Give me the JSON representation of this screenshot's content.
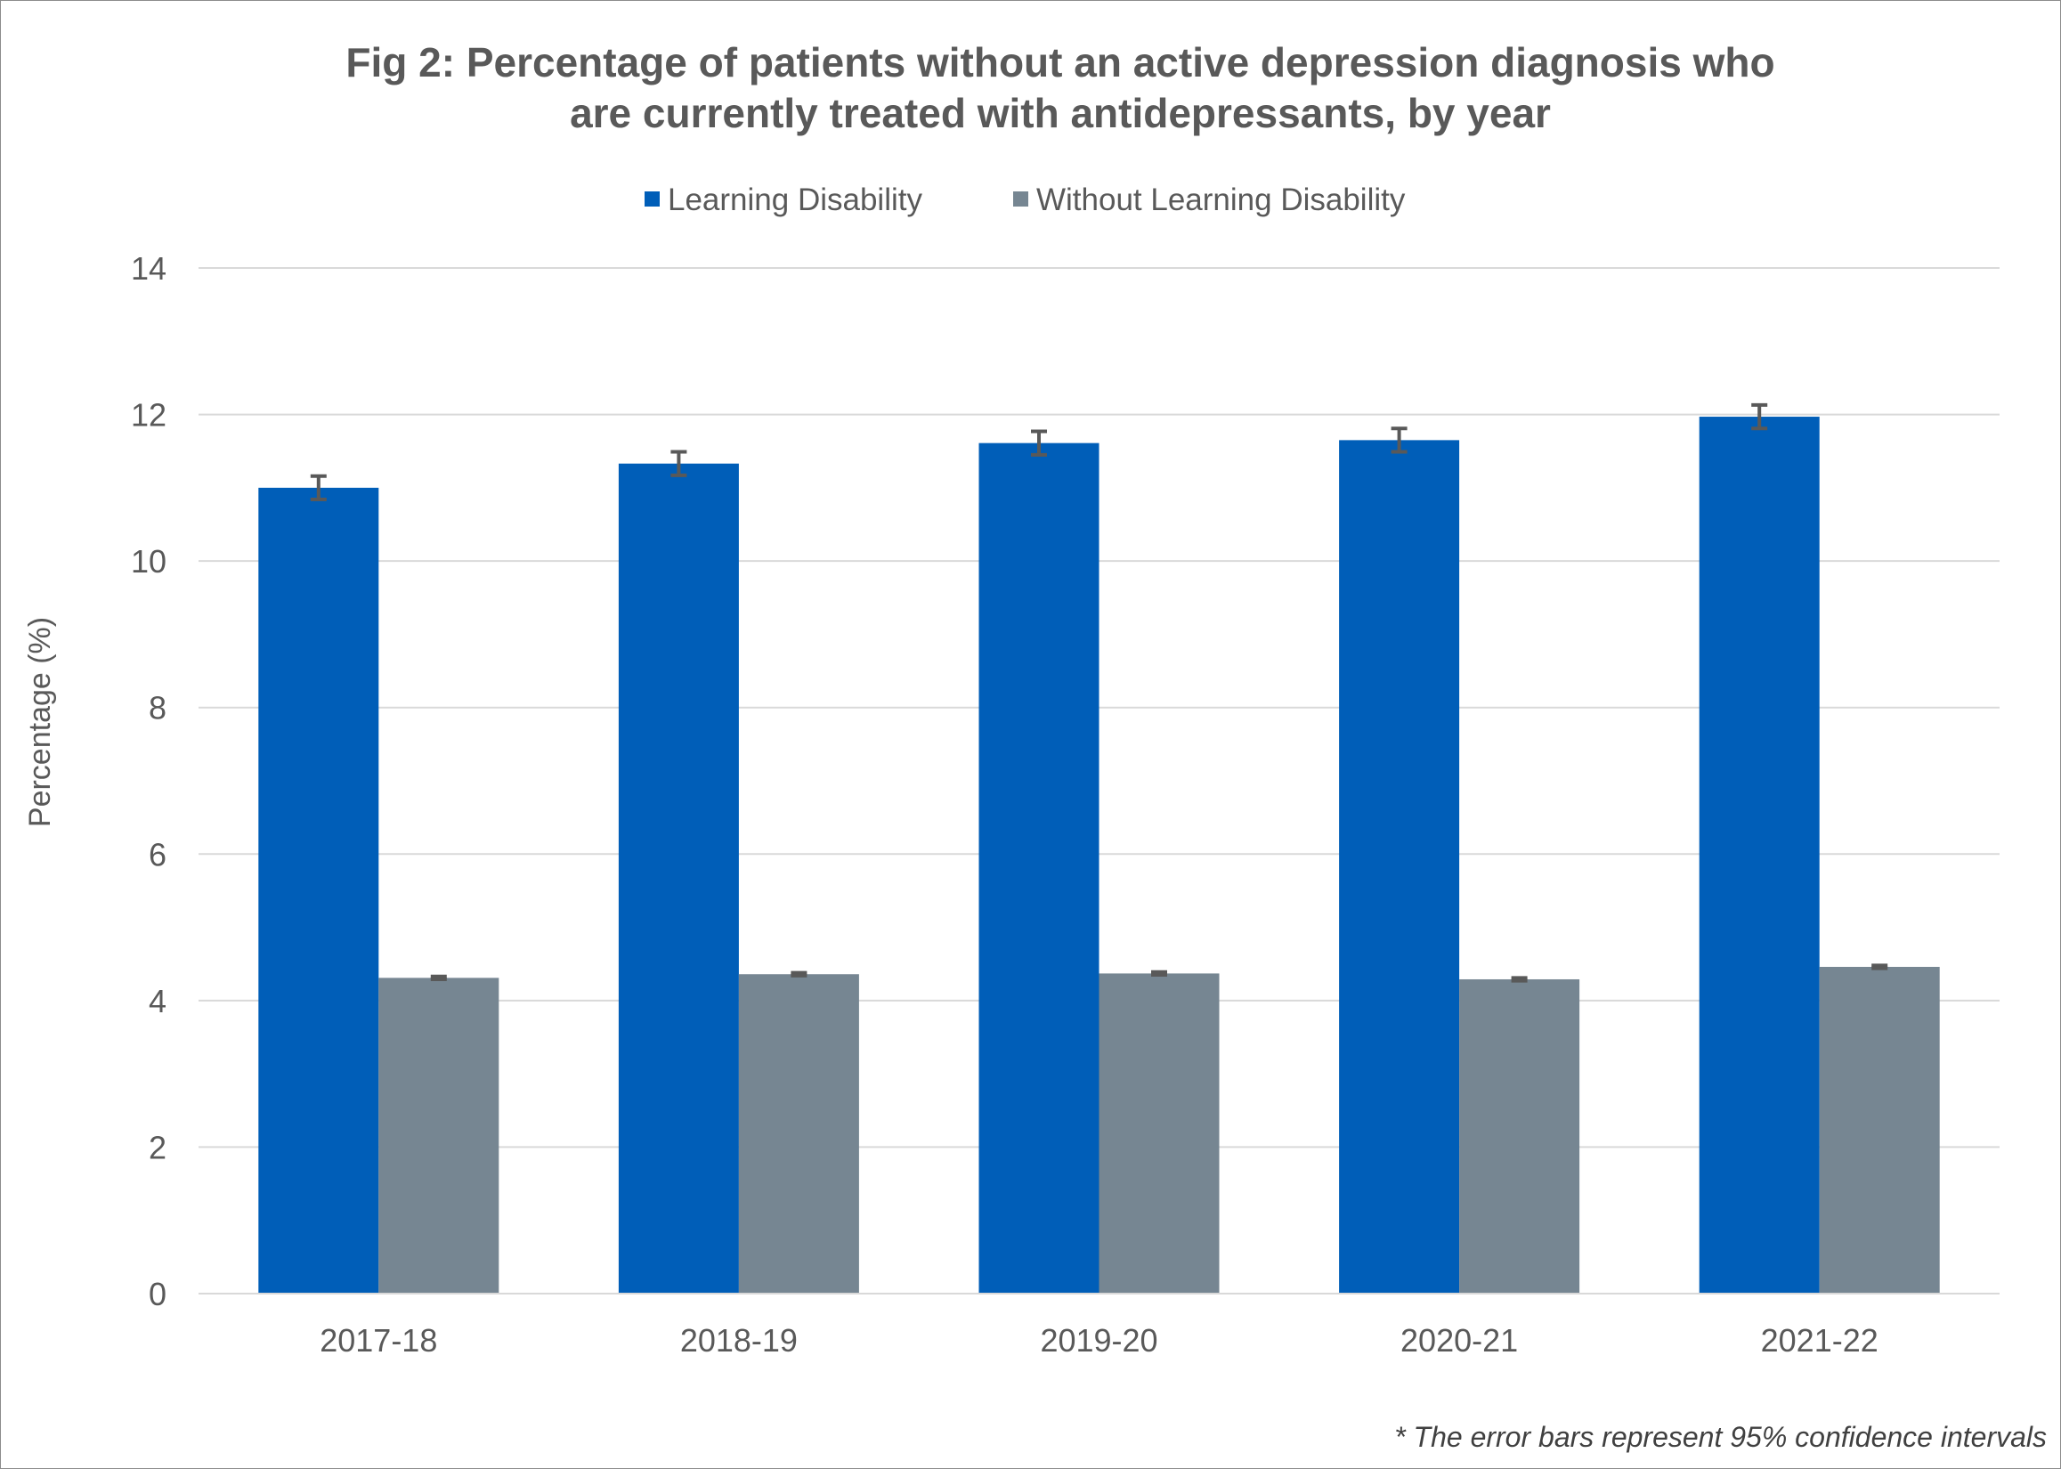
{
  "chart_data": {
    "type": "bar",
    "title_lines": [
      "Fig 2: Percentage of patients without an active depression diagnosis who",
      "are currently treated with antidepressants, by year"
    ],
    "xlabel": "",
    "ylabel": "Percentage (%)",
    "categories": [
      "2017-18",
      "2018-19",
      "2019-20",
      "2020-21",
      "2021-22"
    ],
    "series": [
      {
        "name": "Learning Disability",
        "color": "#005EB8",
        "values": [
          11.0,
          11.33,
          11.61,
          11.65,
          11.97
        ],
        "error": [
          0.16,
          0.16,
          0.16,
          0.16,
          0.16
        ]
      },
      {
        "name": "Without Learning Disability",
        "color": "#768692",
        "values": [
          4.31,
          4.36,
          4.37,
          4.29,
          4.46
        ],
        "error": [
          0.02,
          0.02,
          0.02,
          0.02,
          0.02
        ]
      }
    ],
    "ylim": [
      0,
      14
    ],
    "yticks": [
      "0",
      "2",
      "4",
      "6",
      "8",
      "10",
      "12",
      "14"
    ],
    "grid": true,
    "legend_position": "top-center",
    "error_bar_color": "#595959",
    "footnote": "* The error bars represent 95% confidence intervals"
  }
}
